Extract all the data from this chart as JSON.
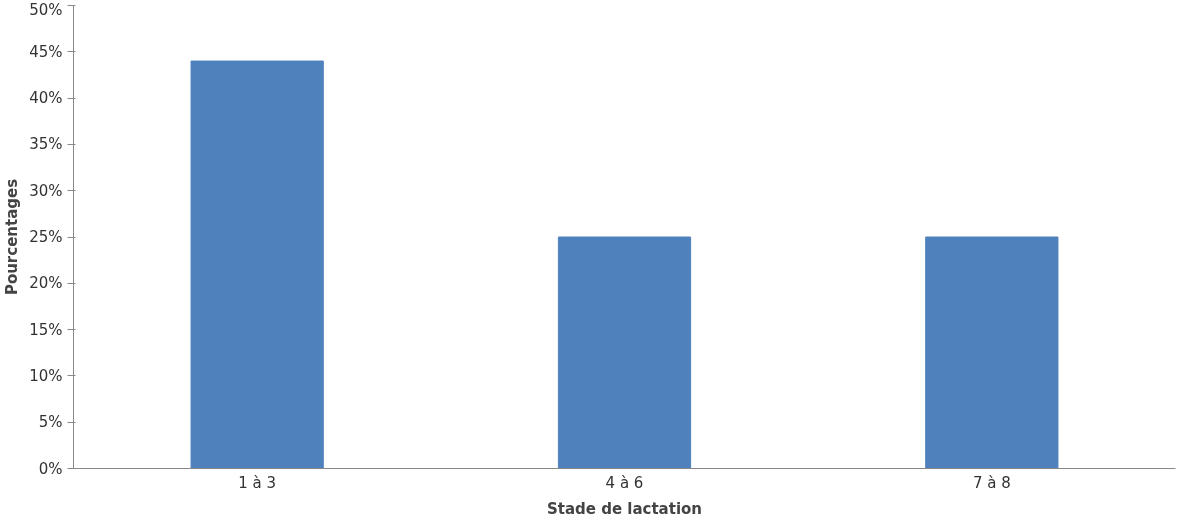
{
  "chart_data": {
    "type": "bar",
    "xlabel": "Stade de lactation",
    "ylabel": "Pourcentages",
    "categories": [
      "1 à 3",
      "4 à 6",
      "7 à 8"
    ],
    "values": [
      44,
      25,
      25
    ],
    "color": "#4f81bd",
    "ylim": [
      0,
      50
    ],
    "yticks": [
      {
        "value": 0,
        "label": "0%"
      },
      {
        "value": 5,
        "label": "5%"
      },
      {
        "value": 10,
        "label": "10%"
      },
      {
        "value": 15,
        "label": "15%"
      },
      {
        "value": 20,
        "label": "20%"
      },
      {
        "value": 25,
        "label": "25%"
      },
      {
        "value": 30,
        "label": "30%"
      },
      {
        "value": 35,
        "label": "35%"
      },
      {
        "value": 40,
        "label": "40%"
      },
      {
        "value": 45,
        "label": "45%"
      },
      {
        "value": 50,
        "label": "50%"
      }
    ],
    "grid": false
  }
}
